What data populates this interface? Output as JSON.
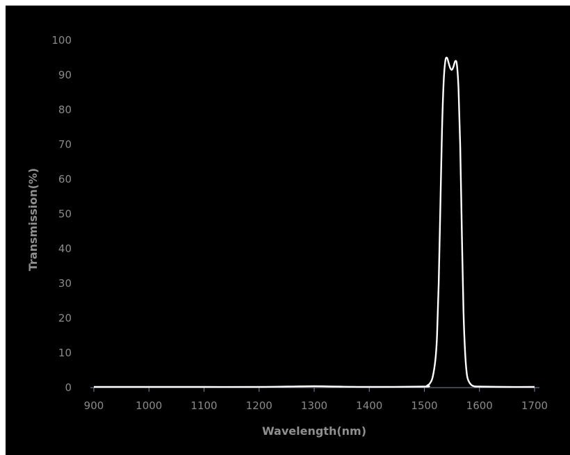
{
  "chart_data": {
    "type": "line",
    "title": "",
    "xlabel": "Wavelength(nm)",
    "ylabel": "Transmission(%)",
    "xlim": [
      900,
      1700
    ],
    "ylim": [
      0,
      100
    ],
    "x_ticks": [
      900,
      1000,
      1100,
      1200,
      1300,
      1400,
      1500,
      1600,
      1700
    ],
    "y_ticks": [
      0,
      10,
      20,
      30,
      40,
      50,
      60,
      70,
      80,
      90,
      100
    ],
    "grid": false,
    "legend": "none",
    "colors": {
      "background": "#000000",
      "line": "#ffffff",
      "axis": "#7d8aa0",
      "text": "#8a8a8a"
    },
    "series": [
      {
        "x": [
          900,
          1000,
          1100,
          1200,
          1250,
          1300,
          1340,
          1400,
          1500,
          1505,
          1510,
          1515,
          1520,
          1523,
          1526,
          1529,
          1532,
          1535,
          1538,
          1541,
          1544,
          1547,
          1550,
          1553,
          1556,
          1559,
          1562,
          1565,
          1568,
          1571,
          1574,
          1577,
          1580,
          1585,
          1590,
          1600,
          1650,
          1700
        ],
        "y": [
          0.2,
          0.2,
          0.2,
          0.2,
          0.3,
          0.4,
          0.3,
          0.2,
          0.3,
          0.6,
          1.2,
          3,
          8,
          15,
          30,
          52,
          74,
          88,
          94,
          95,
          93.5,
          92,
          91.5,
          92.5,
          94,
          93,
          86,
          70,
          45,
          22,
          10,
          4,
          2,
          0.8,
          0.4,
          0.3,
          0.2,
          0.2
        ]
      }
    ]
  }
}
